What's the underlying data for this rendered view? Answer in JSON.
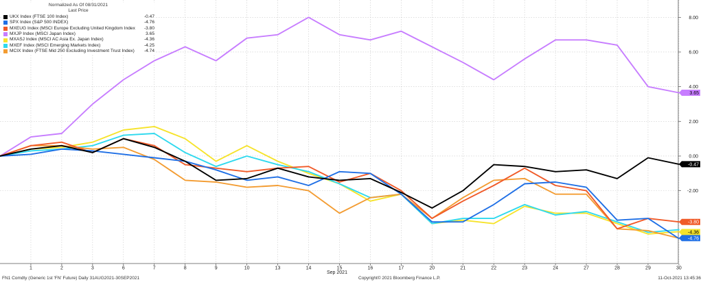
{
  "legend": {
    "header1": "Normalized As Of 08/31/2021",
    "header2": "Last Price",
    "items": [
      {
        "name": "UKX Index (FTSE 100 Index)",
        "value": "-0.47",
        "color": "#000000"
      },
      {
        "name": "SPX Index (S&P 500 INDEX)",
        "value": "-4.76",
        "color": "#1f6fe5"
      },
      {
        "name": "MXEUG Index (MSCI Europe Excluding United Kingdom Index)",
        "value": "-3.80",
        "color": "#f05a28"
      },
      {
        "name": "MXJP Index (MSCI Japan Index)",
        "value": "3.65",
        "color": "#c77dff"
      },
      {
        "name": "MXASJ Index (MSCI AC Asia Ex. Japan Index)",
        "value": "-4.36",
        "color": "#f6e32b"
      },
      {
        "name": "MXEF Index (MSCI Emerging Markets Index)",
        "value": "-4.25",
        "color": "#2fd9ee"
      },
      {
        "name": "MCIX Index (FTSE Mid 250 Excluding Investment Trust Index)",
        "value": "-4.74",
        "color": "#f39c32"
      }
    ]
  },
  "footer": {
    "left": "FN1 Comdty (Generic 1st 'FN' Future)  Daily 31AUG2021-30SEP2021",
    "center": "Copyright© 2021 Bloomberg Finance L.P.",
    "right": "11-Oct-2021 13:45:36"
  },
  "chart_data": {
    "type": "line",
    "x": [
      "31",
      "1",
      "2",
      "3",
      "6",
      "7",
      "8",
      "9",
      "10",
      "13",
      "14",
      "15",
      "16",
      "17",
      "20",
      "21",
      "22",
      "23",
      "24",
      "27",
      "28",
      "29",
      "30"
    ],
    "xlabel": "Sep 2021",
    "ylim": [
      -6.2,
      9
    ],
    "yticks": [
      "-2.00",
      "0.00",
      "2.00",
      "4.00",
      "6.00",
      "8.00"
    ],
    "grid": true,
    "legend_position": "top-left",
    "series": [
      {
        "name": "UKX Index (FTSE 100 Index)",
        "color": "#000000",
        "last": "-0.47",
        "values": [
          0,
          0.4,
          0.6,
          0.2,
          1.0,
          0.5,
          -0.3,
          -1.4,
          -1.3,
          -0.7,
          -1.2,
          -1.4,
          -1.3,
          -2.1,
          -3.0,
          -2.0,
          -0.5,
          -0.6,
          -0.9,
          -0.8,
          -1.3,
          -0.1,
          -0.47
        ]
      },
      {
        "name": "SPX Index (S&P 500 INDEX)",
        "color": "#1f6fe5",
        "last": "-4.76",
        "values": [
          0,
          0.1,
          0.4,
          0.3,
          0.1,
          -0.1,
          -0.3,
          -0.8,
          -1.4,
          -1.2,
          -1.7,
          -0.9,
          -1.0,
          -2.2,
          -3.8,
          -3.8,
          -2.8,
          -1.6,
          -1.5,
          -1.8,
          -3.7,
          -3.6,
          -4.76
        ]
      },
      {
        "name": "MXEUG Index (MSCI Europe Excluding United Kingdom Index)",
        "color": "#f05a28",
        "last": "-3.80",
        "values": [
          0,
          0.6,
          0.8,
          0.2,
          1.0,
          0.6,
          -0.5,
          -0.7,
          -0.9,
          -0.7,
          -0.6,
          -1.5,
          -1.0,
          -2.0,
          -3.6,
          -2.6,
          -1.7,
          -0.7,
          -1.7,
          -2.0,
          -4.2,
          -3.6,
          -3.8
        ]
      },
      {
        "name": "MXJP Index (MSCI Japan Index)",
        "color": "#c77dff",
        "last": "3.65",
        "values": [
          0,
          1.1,
          1.3,
          3.0,
          4.4,
          5.5,
          6.3,
          5.5,
          6.8,
          7.0,
          8.0,
          7.0,
          6.7,
          7.2,
          6.3,
          5.4,
          4.4,
          5.6,
          6.7,
          6.7,
          6.4,
          4.0,
          3.65
        ]
      },
      {
        "name": "MXASJ Index (MSCI AC Asia Ex. Japan Index)",
        "color": "#f6e32b",
        "last": "-4.36",
        "values": [
          0,
          0.4,
          0.5,
          0.8,
          1.5,
          1.7,
          1.0,
          -0.3,
          0.6,
          -0.3,
          -1.0,
          -1.6,
          -2.6,
          -2.2,
          -3.9,
          -3.7,
          -3.9,
          -2.9,
          -3.3,
          -3.3,
          -3.9,
          -4.5,
          -4.36
        ]
      },
      {
        "name": "MXEF Index (MSCI Emerging Markets Index)",
        "color": "#2fd9ee",
        "last": "-4.25",
        "values": [
          0,
          0.3,
          0.4,
          0.6,
          1.2,
          1.3,
          0.2,
          -0.6,
          0.0,
          -0.5,
          -0.9,
          -1.6,
          -2.4,
          -2.2,
          -3.9,
          -3.6,
          -3.6,
          -2.8,
          -3.4,
          -3.2,
          -3.8,
          -4.4,
          -4.25
        ]
      },
      {
        "name": "MCIX Index (FTSE Mid 250 Excluding Investment Trust Index)",
        "color": "#f39c32",
        "last": "-4.74",
        "values": [
          0,
          0.6,
          0.6,
          0.4,
          0.5,
          -0.2,
          -1.4,
          -1.5,
          -1.8,
          -1.7,
          -2.0,
          -3.3,
          -2.4,
          -2.2,
          -3.6,
          -2.4,
          -1.4,
          -1.3,
          -2.2,
          -2.2,
          -4.2,
          -4.3,
          -4.74
        ]
      }
    ]
  }
}
